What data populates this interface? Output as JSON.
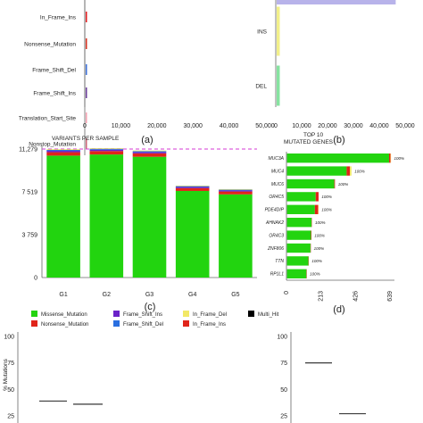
{
  "chart_data": [
    {
      "panel": "(a)",
      "type": "bar",
      "orientation": "horizontal",
      "categories": [
        "In_Frame_Ins",
        "Nonsense_Mutation",
        "Frame_Shift_Del",
        "Frame_Shift_Ins",
        "Translation_Start_Site",
        "Nonstop_Mutation"
      ],
      "values": [
        300,
        100,
        100,
        100,
        30,
        30
      ],
      "colors": [
        "#e41a1c",
        "#d7301f",
        "#3b6fd8",
        "#6a3d9a",
        "#f4a0b0",
        "#cc6677"
      ],
      "xticks": [
        "0",
        "10,000",
        "20,000",
        "30,000",
        "40,000",
        "50,000"
      ],
      "xlim": [
        0,
        50000
      ]
    },
    {
      "panel": "(b)",
      "type": "bar",
      "orientation": "horizontal",
      "categories": [
        "INS",
        "DEL"
      ],
      "values": [
        1000,
        1500
      ],
      "colors": [
        "#f2f08a",
        "#86e3a0"
      ],
      "top_bar": {
        "value": 46000,
        "color": "#b8b3ea"
      },
      "xticks": [
        "0",
        "10,000",
        "20,000",
        "30,000",
        "40,000",
        "50,000"
      ],
      "xlim": [
        0,
        50000
      ]
    },
    {
      "panel": "(c)",
      "type": "bar",
      "stacked": true,
      "title": "VARIANTS PER SAMPLE",
      "categories": [
        "G1",
        "G2",
        "G3",
        "G4",
        "G5"
      ],
      "yticks": [
        "0",
        "3 759",
        "7 519",
        "11,279"
      ],
      "ylim": [
        0,
        11279
      ],
      "reference_line": 11279,
      "series": [
        {
          "name": "Missense_Mutation",
          "color": "#22d40f",
          "values": [
            10700,
            10800,
            10600,
            7600,
            7300
          ]
        },
        {
          "name": "Nonsense_Mutation",
          "color": "#e0241a",
          "values": [
            300,
            300,
            300,
            250,
            250
          ]
        },
        {
          "name": "Frame_Shift_Ins",
          "color": "#6a22c8",
          "values": [
            120,
            120,
            110,
            100,
            90
          ]
        },
        {
          "name": "Frame_Shift_Del",
          "color": "#2a6fe0",
          "values": [
            80,
            80,
            80,
            70,
            70
          ]
        },
        {
          "name": "In_Frame_Del",
          "color": "#f2e866",
          "values": [
            60,
            60,
            60,
            50,
            50
          ]
        }
      ]
    },
    {
      "panel": "(d)",
      "type": "bar",
      "orientation": "horizontal",
      "stacked": true,
      "title": "TOP 10 MUTATED GENES",
      "categories": [
        "MUC3A",
        "MUC4",
        "MUC6",
        "OR4C5",
        "PDE4DIP",
        "AHNAK2",
        "OR4C3",
        "ZNF806",
        "TTN",
        "RP1L1"
      ],
      "labels": [
        "100%",
        "100%",
        "100%",
        "100%",
        "100%",
        "100%",
        "100%",
        "100%",
        "100%",
        "100%"
      ],
      "xticks": [
        "0",
        "213",
        "426",
        "639"
      ],
      "xlim": [
        0,
        639
      ],
      "series": [
        {
          "name": "Missense_Mutation",
          "color": "#22d40f",
          "values": [
            630,
            368,
            292,
            177,
            172,
            152,
            148,
            145,
            132,
            120
          ]
        },
        {
          "name": "Nonsense_Mutation",
          "color": "#e0241a",
          "values": [
            9,
            20,
            4,
            18,
            20,
            2,
            3,
            2,
            2,
            2
          ]
        },
        {
          "name": "In_Frame_Del",
          "color": "#f2e866",
          "values": [
            3,
            10,
            0,
            0,
            3,
            0,
            0,
            0,
            0,
            0
          ]
        }
      ]
    },
    {
      "panel": "bottom-left",
      "type": "box",
      "ylabel": "% Mutations",
      "yticks": [
        "25",
        "50",
        "75",
        "100"
      ],
      "ylim": [
        25,
        100
      ],
      "medians": [
        39,
        36
      ]
    },
    {
      "panel": "bottom-right",
      "type": "box",
      "yticks": [
        "25",
        "50",
        "75",
        "100"
      ],
      "ylim": [
        25,
        100
      ],
      "medians": [
        75,
        27
      ]
    }
  ],
  "legend": [
    {
      "label": "Missense_Mutation",
      "color": "#22d40f"
    },
    {
      "label": "Frame_Shift_Ins",
      "color": "#6a22c8"
    },
    {
      "label": "In_Frame_Del",
      "color": "#f2e866"
    },
    {
      "label": "Multi_Hit",
      "color": "#000000"
    },
    {
      "label": "Nonsense_Mutation",
      "color": "#e0241a"
    },
    {
      "label": "Frame_Shift_Del",
      "color": "#2a6fe0"
    },
    {
      "label": "In_Frame_Ins",
      "color": "#e0241a"
    }
  ]
}
